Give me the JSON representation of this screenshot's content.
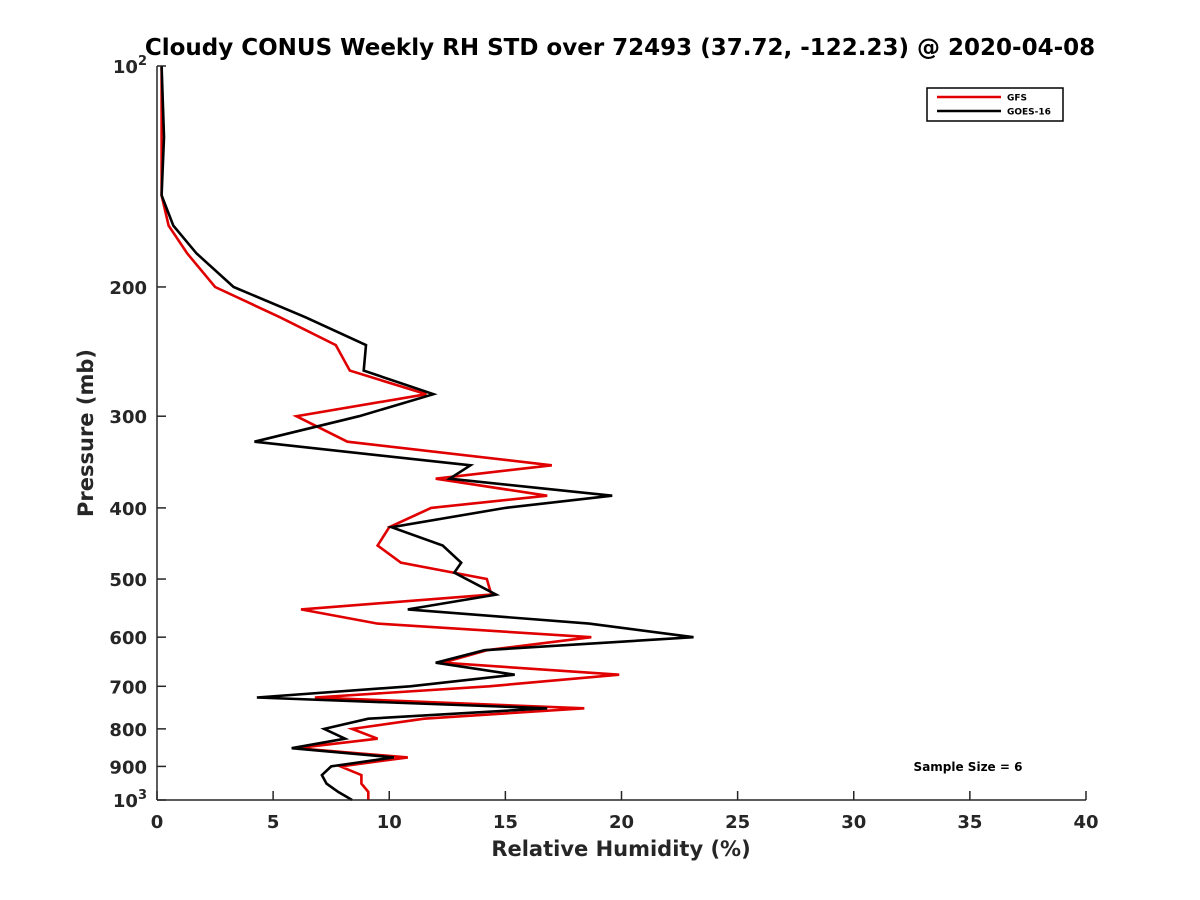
{
  "chart_data": {
    "type": "line",
    "title": "Cloudy CONUS Weekly RH STD over 72493 (37.72, -122.23) @ 2020-04-08",
    "xlabel": "Relative Humidity (%)",
    "ylabel": "Pressure (mb)",
    "xlim": [
      0,
      40
    ],
    "ylim": [
      100,
      1000
    ],
    "y_scale": "log",
    "y_reversed": true,
    "grid": false,
    "legend_position": "top-right",
    "x_ticks": [
      0,
      5,
      10,
      15,
      20,
      25,
      30,
      35,
      40
    ],
    "y_ticks": [
      {
        "value": 100,
        "base": "10",
        "exp": "2",
        "label": "10^2"
      },
      {
        "value": 200,
        "label": "200"
      },
      {
        "value": 300,
        "label": "300"
      },
      {
        "value": 400,
        "label": "400"
      },
      {
        "value": 500,
        "label": "500"
      },
      {
        "value": 600,
        "label": "600"
      },
      {
        "value": 700,
        "label": "700"
      },
      {
        "value": 800,
        "label": "800"
      },
      {
        "value": 900,
        "label": "900"
      },
      {
        "value": 1000,
        "base": "10",
        "exp": "3",
        "label": "10^3"
      }
    ],
    "series": [
      {
        "name": "GFS",
        "color": "#e00000",
        "points": [
          [
            0.2,
            100
          ],
          [
            0.2,
            125
          ],
          [
            0.2,
            150
          ],
          [
            0.5,
            165
          ],
          [
            1.3,
            180
          ],
          [
            2.5,
            200
          ],
          [
            5.3,
            220
          ],
          [
            7.7,
            240
          ],
          [
            8.3,
            260
          ],
          [
            11.6,
            280
          ],
          [
            6.0,
            300
          ],
          [
            8.2,
            325
          ],
          [
            17.0,
            350
          ],
          [
            12.0,
            365
          ],
          [
            16.8,
            385
          ],
          [
            11.8,
            400
          ],
          [
            10.0,
            425
          ],
          [
            9.5,
            450
          ],
          [
            10.5,
            475
          ],
          [
            14.2,
            500
          ],
          [
            14.4,
            525
          ],
          [
            6.2,
            550
          ],
          [
            9.5,
            575
          ],
          [
            18.7,
            600
          ],
          [
            14.2,
            625
          ],
          [
            12.3,
            650
          ],
          [
            19.9,
            675
          ],
          [
            14.3,
            700
          ],
          [
            6.8,
            725
          ],
          [
            18.4,
            750
          ],
          [
            11.5,
            775
          ],
          [
            8.4,
            800
          ],
          [
            9.5,
            825
          ],
          [
            6.0,
            850
          ],
          [
            10.8,
            875
          ],
          [
            7.9,
            900
          ],
          [
            8.8,
            925
          ],
          [
            8.8,
            950
          ],
          [
            9.1,
            975
          ],
          [
            9.1,
            1000
          ]
        ]
      },
      {
        "name": "GOES-16",
        "color": "#000000",
        "points": [
          [
            0.2,
            100
          ],
          [
            0.3,
            125
          ],
          [
            0.2,
            150
          ],
          [
            0.7,
            165
          ],
          [
            1.7,
            180
          ],
          [
            3.3,
            200
          ],
          [
            6.4,
            220
          ],
          [
            9.0,
            240
          ],
          [
            8.9,
            260
          ],
          [
            11.9,
            280
          ],
          [
            8.7,
            300
          ],
          [
            4.2,
            325
          ],
          [
            13.5,
            350
          ],
          [
            12.6,
            365
          ],
          [
            19.6,
            385
          ],
          [
            15.0,
            400
          ],
          [
            10.1,
            425
          ],
          [
            12.3,
            450
          ],
          [
            13.1,
            475
          ],
          [
            12.8,
            490
          ],
          [
            14.6,
            525
          ],
          [
            10.8,
            550
          ],
          [
            18.6,
            575
          ],
          [
            23.1,
            600
          ],
          [
            14.1,
            625
          ],
          [
            12.0,
            650
          ],
          [
            15.4,
            675
          ],
          [
            10.9,
            700
          ],
          [
            4.3,
            725
          ],
          [
            16.8,
            750
          ],
          [
            9.1,
            775
          ],
          [
            7.2,
            800
          ],
          [
            8.1,
            825
          ],
          [
            5.8,
            850
          ],
          [
            10.2,
            875
          ],
          [
            7.5,
            900
          ],
          [
            7.1,
            925
          ],
          [
            7.3,
            950
          ],
          [
            7.8,
            975
          ],
          [
            8.4,
            1000
          ]
        ]
      }
    ],
    "annotations": [
      {
        "text": "Sample Size = 6"
      }
    ]
  }
}
